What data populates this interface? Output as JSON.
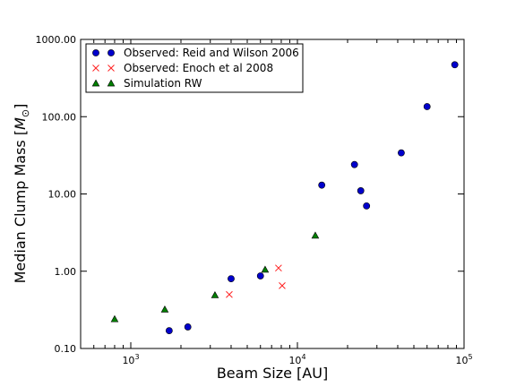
{
  "chart_data": {
    "type": "scatter",
    "title": "",
    "xlabel": "Beam Size [AU]",
    "ylabel": "Median Clump Mass [",
    "ylabel_unit_symbol": "M",
    "ylabel_unit_sub": "⊙",
    "ylabel_close": "]",
    "x_scale": "log",
    "y_scale": "log",
    "xlim": [
      500,
      100000
    ],
    "ylim": [
      0.1,
      1000
    ],
    "x_ticks": [
      {
        "value": 1000,
        "base": "10",
        "exp": "3"
      },
      {
        "value": 10000,
        "base": "10",
        "exp": "4"
      },
      {
        "value": 100000,
        "base": "10",
        "exp": "5"
      }
    ],
    "y_ticks": [
      {
        "value": 0.1,
        "label": "0.10"
      },
      {
        "value": 1,
        "label": "1.00"
      },
      {
        "value": 10,
        "label": "10.00"
      },
      {
        "value": 100,
        "label": "100.00"
      },
      {
        "value": 1000,
        "label": "1000.00"
      }
    ],
    "grid": false,
    "legend_position": "top-left",
    "series": [
      {
        "name": "Observed: Reid and Wilson 2006",
        "marker": "circle",
        "color": "#0000cc",
        "points": [
          {
            "x": 1700,
            "y": 0.17
          },
          {
            "x": 2200,
            "y": 0.19
          },
          {
            "x": 4000,
            "y": 0.8
          },
          {
            "x": 6000,
            "y": 0.87
          },
          {
            "x": 14000,
            "y": 13
          },
          {
            "x": 22000,
            "y": 24
          },
          {
            "x": 24000,
            "y": 11
          },
          {
            "x": 26000,
            "y": 7
          },
          {
            "x": 42000,
            "y": 34
          },
          {
            "x": 60000,
            "y": 135
          },
          {
            "x": 88000,
            "y": 470
          }
        ]
      },
      {
        "name": "Observed: Enoch et al 2008",
        "marker": "x",
        "color": "#ff2020",
        "points": [
          {
            "x": 3900,
            "y": 0.5
          },
          {
            "x": 7700,
            "y": 1.1
          },
          {
            "x": 8100,
            "y": 0.65
          }
        ]
      },
      {
        "name": "Simulation RW",
        "marker": "triangle",
        "color": "#007f00",
        "points": [
          {
            "x": 800,
            "y": 0.24
          },
          {
            "x": 1600,
            "y": 0.32
          },
          {
            "x": 3200,
            "y": 0.49
          },
          {
            "x": 6400,
            "y": 1.05
          },
          {
            "x": 12800,
            "y": 2.9
          }
        ]
      }
    ]
  }
}
